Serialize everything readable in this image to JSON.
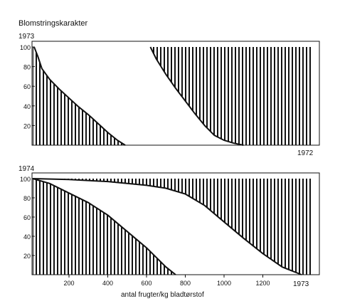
{
  "chart_data": [
    {
      "type": "area",
      "panel_label": "1973",
      "title": "Blomstringskarakter",
      "end_label": "1972",
      "xlabel": "",
      "ylabel": "",
      "xlim": [
        0,
        1400
      ],
      "ylim": [
        0,
        100
      ],
      "yticks": [
        20,
        40,
        60,
        80,
        100
      ],
      "xticks": [],
      "grid": false,
      "fill": "vertical hatching",
      "series": [
        {
          "x": [
            20,
            40,
            60,
            100,
            150,
            200,
            250,
            300,
            350,
            400,
            450,
            490
          ],
          "values": [
            100,
            90,
            78,
            67,
            57,
            48,
            39,
            31,
            22,
            13,
            5,
            0
          ]
        },
        {
          "x": [
            620,
            650,
            700,
            750,
            800,
            850,
            900,
            950,
            1000,
            1050,
            1100
          ],
          "values": [
            100,
            88,
            72,
            58,
            45,
            32,
            20,
            10,
            5,
            2,
            0
          ]
        }
      ]
    },
    {
      "type": "area",
      "panel_label": "1974",
      "end_label": "1973",
      "xlabel": "antal frugter/kg bladtørstof",
      "ylabel": "",
      "xlim": [
        0,
        1400
      ],
      "ylim": [
        0,
        100
      ],
      "yticks": [
        20,
        40,
        60,
        80,
        100
      ],
      "xticks": [
        200,
        400,
        600,
        800,
        1000,
        1200
      ],
      "grid": false,
      "fill": "vertical hatching",
      "series": [
        {
          "x": [
            0,
            100,
            200,
            300,
            400,
            500,
            600,
            700,
            750
          ],
          "values": [
            100,
            95,
            85,
            75,
            62,
            45,
            28,
            8,
            0
          ]
        },
        {
          "x": [
            0,
            200,
            400,
            600,
            700,
            800,
            900,
            1000,
            1100,
            1200,
            1300,
            1400
          ],
          "values": [
            100,
            99,
            97,
            93,
            90,
            84,
            72,
            55,
            38,
            22,
            8,
            0
          ]
        }
      ]
    }
  ]
}
